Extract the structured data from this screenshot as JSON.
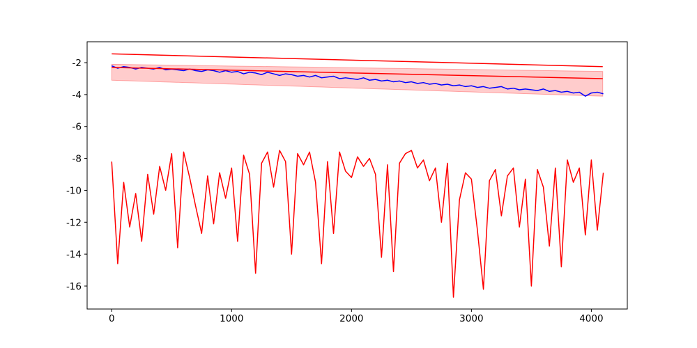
{
  "chart_data": {
    "type": "line",
    "xlim": [
      -205,
      4300
    ],
    "ylim": [
      -17.44,
      -0.69
    ],
    "xticks": [
      0,
      1000,
      2000,
      3000,
      4000
    ],
    "yticks": [
      -16,
      -14,
      -12,
      -10,
      -8,
      -6,
      -4,
      -2
    ],
    "x": [
      0,
      50,
      100,
      150,
      200,
      250,
      300,
      350,
      400,
      450,
      500,
      550,
      600,
      650,
      700,
      750,
      800,
      850,
      900,
      950,
      1000,
      1050,
      1100,
      1150,
      1200,
      1250,
      1300,
      1350,
      1400,
      1450,
      1500,
      1550,
      1600,
      1650,
      1700,
      1750,
      1800,
      1850,
      1900,
      1950,
      2000,
      2050,
      2100,
      2150,
      2200,
      2250,
      2300,
      2350,
      2400,
      2450,
      2500,
      2550,
      2600,
      2650,
      2700,
      2750,
      2800,
      2850,
      2900,
      2950,
      3000,
      3050,
      3100,
      3150,
      3200,
      3250,
      3300,
      3350,
      3400,
      3450,
      3500,
      3550,
      3600,
      3650,
      3700,
      3750,
      3800,
      3850,
      3900,
      3950,
      4000,
      4050,
      4100
    ],
    "band": {
      "color": "#ff0000",
      "x": [
        0,
        4095
      ],
      "lower": [
        -3.1,
        -4.1
      ],
      "upper": [
        -2.1,
        -2.55
      ]
    },
    "series": [
      {
        "color": "#0000ff",
        "values": [
          -2.2,
          -2.35,
          -2.25,
          -2.3,
          -2.4,
          -2.3,
          -2.35,
          -2.4,
          -2.3,
          -2.45,
          -2.4,
          -2.45,
          -2.5,
          -2.4,
          -2.5,
          -2.55,
          -2.45,
          -2.5,
          -2.6,
          -2.5,
          -2.6,
          -2.55,
          -2.7,
          -2.6,
          -2.65,
          -2.75,
          -2.6,
          -2.7,
          -2.8,
          -2.7,
          -2.75,
          -2.85,
          -2.8,
          -2.9,
          -2.8,
          -2.95,
          -2.9,
          -2.85,
          -3.0,
          -2.95,
          -3.0,
          -3.05,
          -2.95,
          -3.1,
          -3.05,
          -3.15,
          -3.1,
          -3.2,
          -3.15,
          -3.25,
          -3.2,
          -3.3,
          -3.25,
          -3.35,
          -3.3,
          -3.4,
          -3.35,
          -3.45,
          -3.4,
          -3.5,
          -3.45,
          -3.55,
          -3.5,
          -3.6,
          -3.55,
          -3.5,
          -3.65,
          -3.6,
          -3.7,
          -3.65,
          -3.7,
          -3.75,
          -3.65,
          -3.8,
          -3.75,
          -3.85,
          -3.8,
          -3.9,
          -3.85,
          -4.1,
          -3.9,
          -3.85,
          -3.95
        ]
      },
      {
        "color": "#ff0000",
        "values": [
          -8.2,
          -14.6,
          -9.5,
          -12.3,
          -10.2,
          -13.2,
          -9.0,
          -11.5,
          -8.5,
          -10.0,
          -7.7,
          -13.6,
          -7.6,
          -9.2,
          -11.0,
          -12.7,
          -9.1,
          -12.1,
          -8.9,
          -10.5,
          -8.6,
          -13.2,
          -7.8,
          -9.0,
          -15.2,
          -8.3,
          -7.6,
          -9.8,
          -7.5,
          -8.2,
          -14.0,
          -7.7,
          -8.4,
          -7.6,
          -9.5,
          -14.6,
          -8.2,
          -12.7,
          -7.6,
          -8.8,
          -9.2,
          -7.9,
          -8.5,
          -8.0,
          -9.0,
          -14.2,
          -8.4,
          -15.1,
          -8.3,
          -7.7,
          -7.5,
          -8.6,
          -8.1,
          -9.4,
          -8.6,
          -12.0,
          -8.3,
          -16.7,
          -10.6,
          -8.9,
          -9.3,
          -12.5,
          -16.2,
          -9.4,
          -8.7,
          -11.6,
          -9.1,
          -8.6,
          -12.3,
          -9.3,
          -16.0,
          -8.7,
          -9.8,
          -13.5,
          -8.6,
          -14.8,
          -8.1,
          -9.5,
          -8.6,
          -12.8,
          -8.1,
          -12.5,
          -8.9
        ]
      },
      {
        "color": "#ff0000",
        "x": [
          0,
          4095
        ],
        "values": [
          -1.45,
          -2.25
        ]
      },
      {
        "color": "#ff0000",
        "x": [
          0,
          4095
        ],
        "values": [
          -2.3,
          -3.0
        ]
      }
    ]
  }
}
